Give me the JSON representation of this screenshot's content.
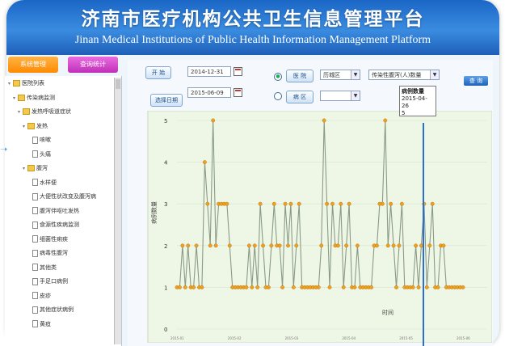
{
  "header": {
    "title_cn": "济南市医疗机构公共卫生信息管理平台",
    "title_en": "Jinan Medical Institutions of Public Health Information Management Platform"
  },
  "tabs": [
    {
      "label": "系统管理"
    },
    {
      "label": "查询统计"
    }
  ],
  "sidebar": {
    "items": [
      {
        "label": "医院列表",
        "depth": 0,
        "type": "folder"
      },
      {
        "label": "传染病监测",
        "depth": 1,
        "type": "folder"
      },
      {
        "label": "发热呼吸道症状",
        "depth": 2,
        "type": "folder"
      },
      {
        "label": "发热",
        "depth": 3,
        "type": "folder"
      },
      {
        "label": "咳嗽",
        "depth": 4,
        "type": "doc"
      },
      {
        "label": "头痛",
        "depth": 4,
        "type": "doc"
      },
      {
        "label": "腹泻",
        "depth": 3,
        "type": "folder"
      },
      {
        "label": "水样便",
        "depth": 4,
        "type": "doc"
      },
      {
        "label": "大便性状改变及腹泻病",
        "depth": 4,
        "type": "doc"
      },
      {
        "label": "腹泻伴呕吐发热",
        "depth": 4,
        "type": "doc"
      },
      {
        "label": "食源性疾病监测",
        "depth": 4,
        "type": "doc"
      },
      {
        "label": "细菌性痢疾",
        "depth": 4,
        "type": "doc"
      },
      {
        "label": "病毒性腹泻",
        "depth": 4,
        "type": "doc"
      },
      {
        "label": "其他类",
        "depth": 4,
        "type": "doc"
      },
      {
        "label": "手足口病例",
        "depth": 4,
        "type": "doc"
      },
      {
        "label": "皮疹",
        "depth": 4,
        "type": "doc"
      },
      {
        "label": "其他症状病例",
        "depth": 4,
        "type": "doc"
      },
      {
        "label": "黄疸",
        "depth": 4,
        "type": "doc"
      }
    ]
  },
  "filters": {
    "start_label": "开 始",
    "start_date": "2014-12-31",
    "end_label": "选择日期",
    "end_date": "2015-06-09",
    "option1_label": "医 院",
    "option1_value": "历城区",
    "option2_label": "病 区",
    "option2_value": "",
    "category_value": "传染性腹泻(人)数量",
    "query_label": "查 询"
  },
  "tooltip": {
    "title": "病例数量",
    "date": "2015-04-26",
    "value": "5"
  },
  "chart_data": {
    "type": "line",
    "ylabel": "病例数量",
    "xlabel": "时间",
    "ylim": [
      0,
      5
    ],
    "yticks": [
      0,
      1,
      2,
      3,
      4,
      5
    ],
    "x_tick_labels": [
      "2015-01",
      "2015-02",
      "2015-03",
      "2015-04",
      "2015-05",
      "2015-06"
    ],
    "series": [
      {
        "values": [
          1,
          1,
          2,
          1,
          2,
          1,
          1,
          2,
          1,
          1,
          4,
          3,
          2,
          5,
          2,
          3,
          3,
          3,
          3,
          2,
          1,
          1,
          1,
          1,
          1,
          1,
          2,
          1,
          2,
          1,
          3,
          2,
          1,
          1,
          2,
          3,
          2,
          2,
          1,
          3,
          2,
          3,
          1,
          2,
          3,
          1,
          1,
          1,
          1,
          1,
          1,
          1,
          2,
          5,
          3,
          1,
          3,
          2,
          2,
          3,
          1,
          2,
          3,
          1,
          1,
          2,
          1,
          1,
          1,
          1,
          1,
          2,
          2,
          3,
          3,
          5,
          2,
          3,
          2,
          1,
          2,
          3,
          1,
          1,
          1,
          1,
          2,
          1,
          2,
          3,
          1,
          2,
          3,
          1,
          1,
          2,
          2,
          1,
          1,
          1,
          1,
          1,
          1,
          1
        ]
      }
    ],
    "colors": {
      "line": "#8a9a84",
      "marker": "#f0a020",
      "plot_bg": "#eef7e6"
    }
  }
}
